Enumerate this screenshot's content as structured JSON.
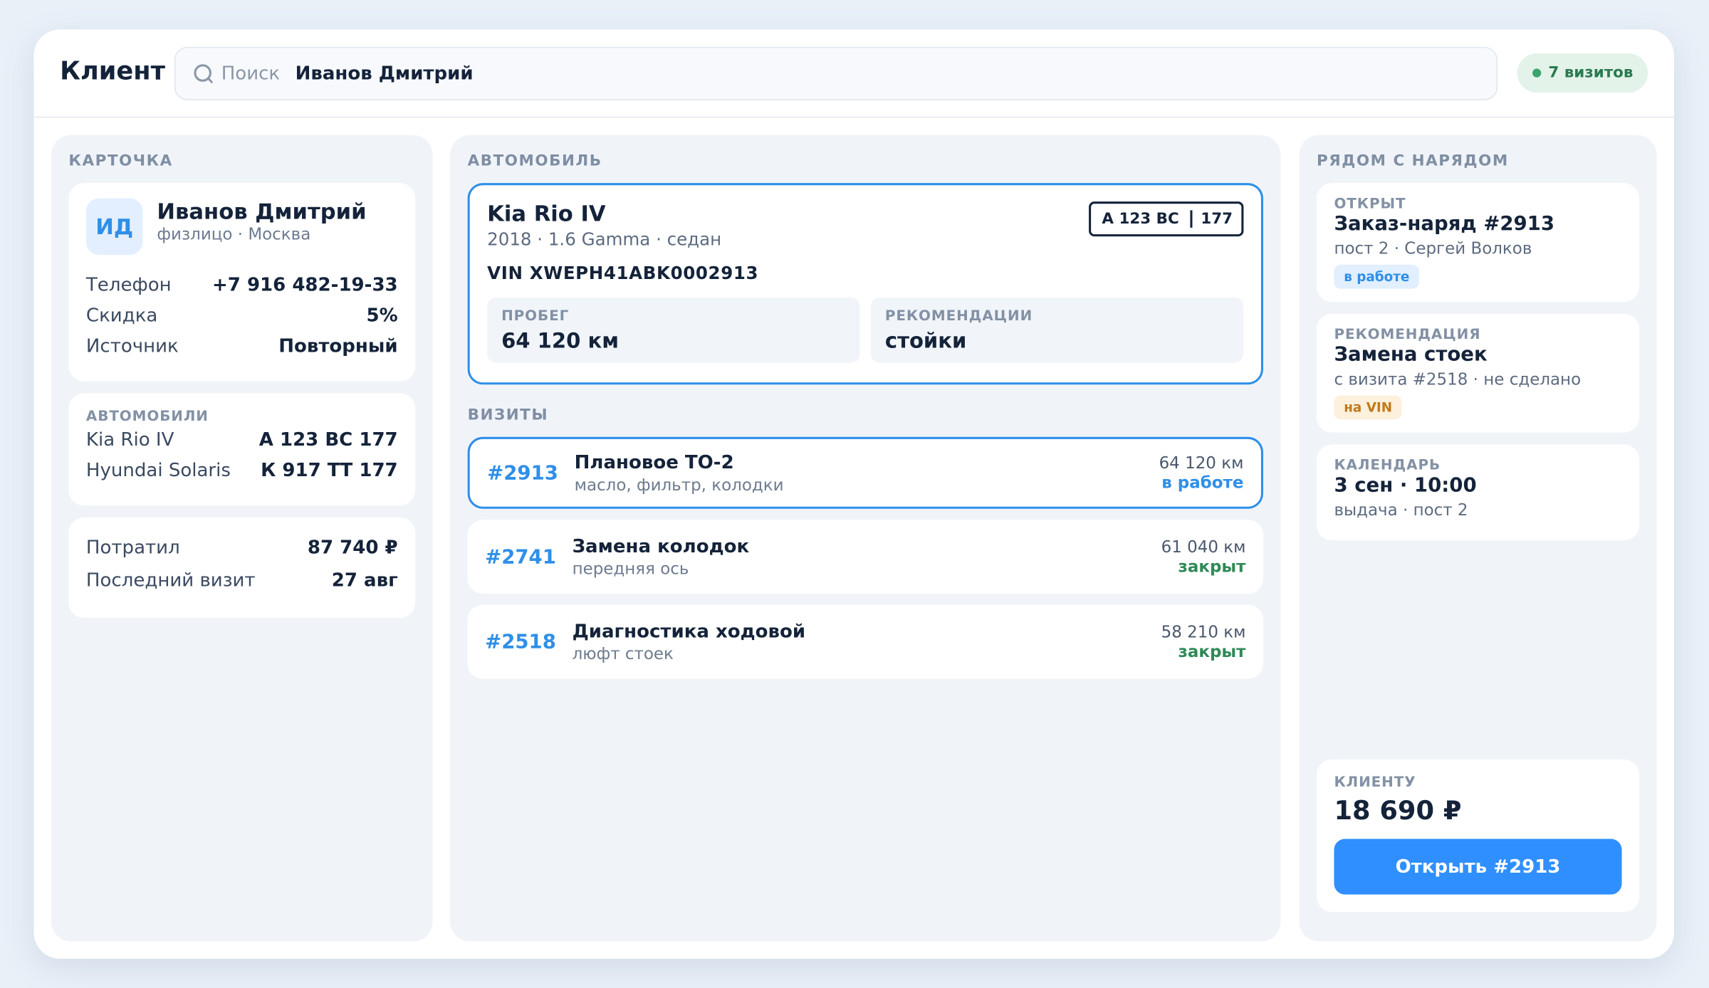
{
  "header": {
    "title": "Клиент",
    "search_placeholder": "Поиск",
    "search_value": "Иванов Дмитрий",
    "badge": "7 визитов"
  },
  "card": {
    "label": "КАРТОЧКА",
    "initials": "ИД",
    "name": "Иванов Дмитрий",
    "subtitle": "физлицо · Москва",
    "fields": [
      {
        "label": "Телефон",
        "value": "+7 916 482-19-33"
      },
      {
        "label": "Скидка",
        "value": "5%"
      },
      {
        "label": "Источник",
        "value": "Повторный"
      }
    ]
  },
  "cars": {
    "label": "АВТОМОБИЛИ",
    "items": [
      {
        "name": "Kia Rio IV",
        "plate": "А 123 ВС 177"
      },
      {
        "name": "Hyundai Solaris",
        "plate": "К 917 ТТ 177"
      }
    ]
  },
  "stats": [
    {
      "label": "Потратил",
      "value": "87 740 ₽"
    },
    {
      "label": "Последний визит",
      "value": "27 авг"
    }
  ],
  "vehicle": {
    "label": "АВТОМОБИЛЬ",
    "name": "Kia Rio IV",
    "details": "2018 · 1.6 Gamma · седан",
    "plate": "А 123 ВС",
    "region": "177",
    "vin": "VIN XWEPH41ABK0002913",
    "metrics": [
      {
        "label": "ПРОБЕГ",
        "value": "64 120 км"
      },
      {
        "label": "РЕКОМЕНДАЦИИ",
        "value": "стойки"
      }
    ]
  },
  "visits": {
    "label": "ВИЗИТЫ",
    "items": [
      {
        "id": "#2913",
        "title": "Плановое ТО-2",
        "desc": "масло, фильтр, колодки",
        "mileage": "64 120 км",
        "status": "в работе"
      },
      {
        "id": "#2741",
        "title": "Замена колодок",
        "desc": "передняя ось",
        "mileage": "61 040 км",
        "status": "закрыт"
      },
      {
        "id": "#2518",
        "title": "Диагностика ходовой",
        "desc": "люфт стоек",
        "mileage": "58 210 км",
        "status": "закрыт"
      }
    ]
  },
  "side": {
    "label": "РЯДОМ С НАРЯДОМ",
    "items": [
      {
        "tag": "ОТКРЫТ",
        "title": "Заказ-наряд #2913",
        "desc": "пост 2 · Сергей Волков",
        "badge": "в работе"
      },
      {
        "tag": "РЕКОМЕНДАЦИЯ",
        "title": "Замена стоек",
        "desc": "с визита #2518 · не сделано",
        "badge": "на VIN"
      },
      {
        "tag": "КАЛЕНДАРЬ",
        "title": "3 сен · 10:00",
        "desc": "выдача · пост 2"
      }
    ],
    "client_label": "КЛИЕНТУ",
    "amount": "18 690 ₽",
    "button": "Открыть #2913"
  }
}
